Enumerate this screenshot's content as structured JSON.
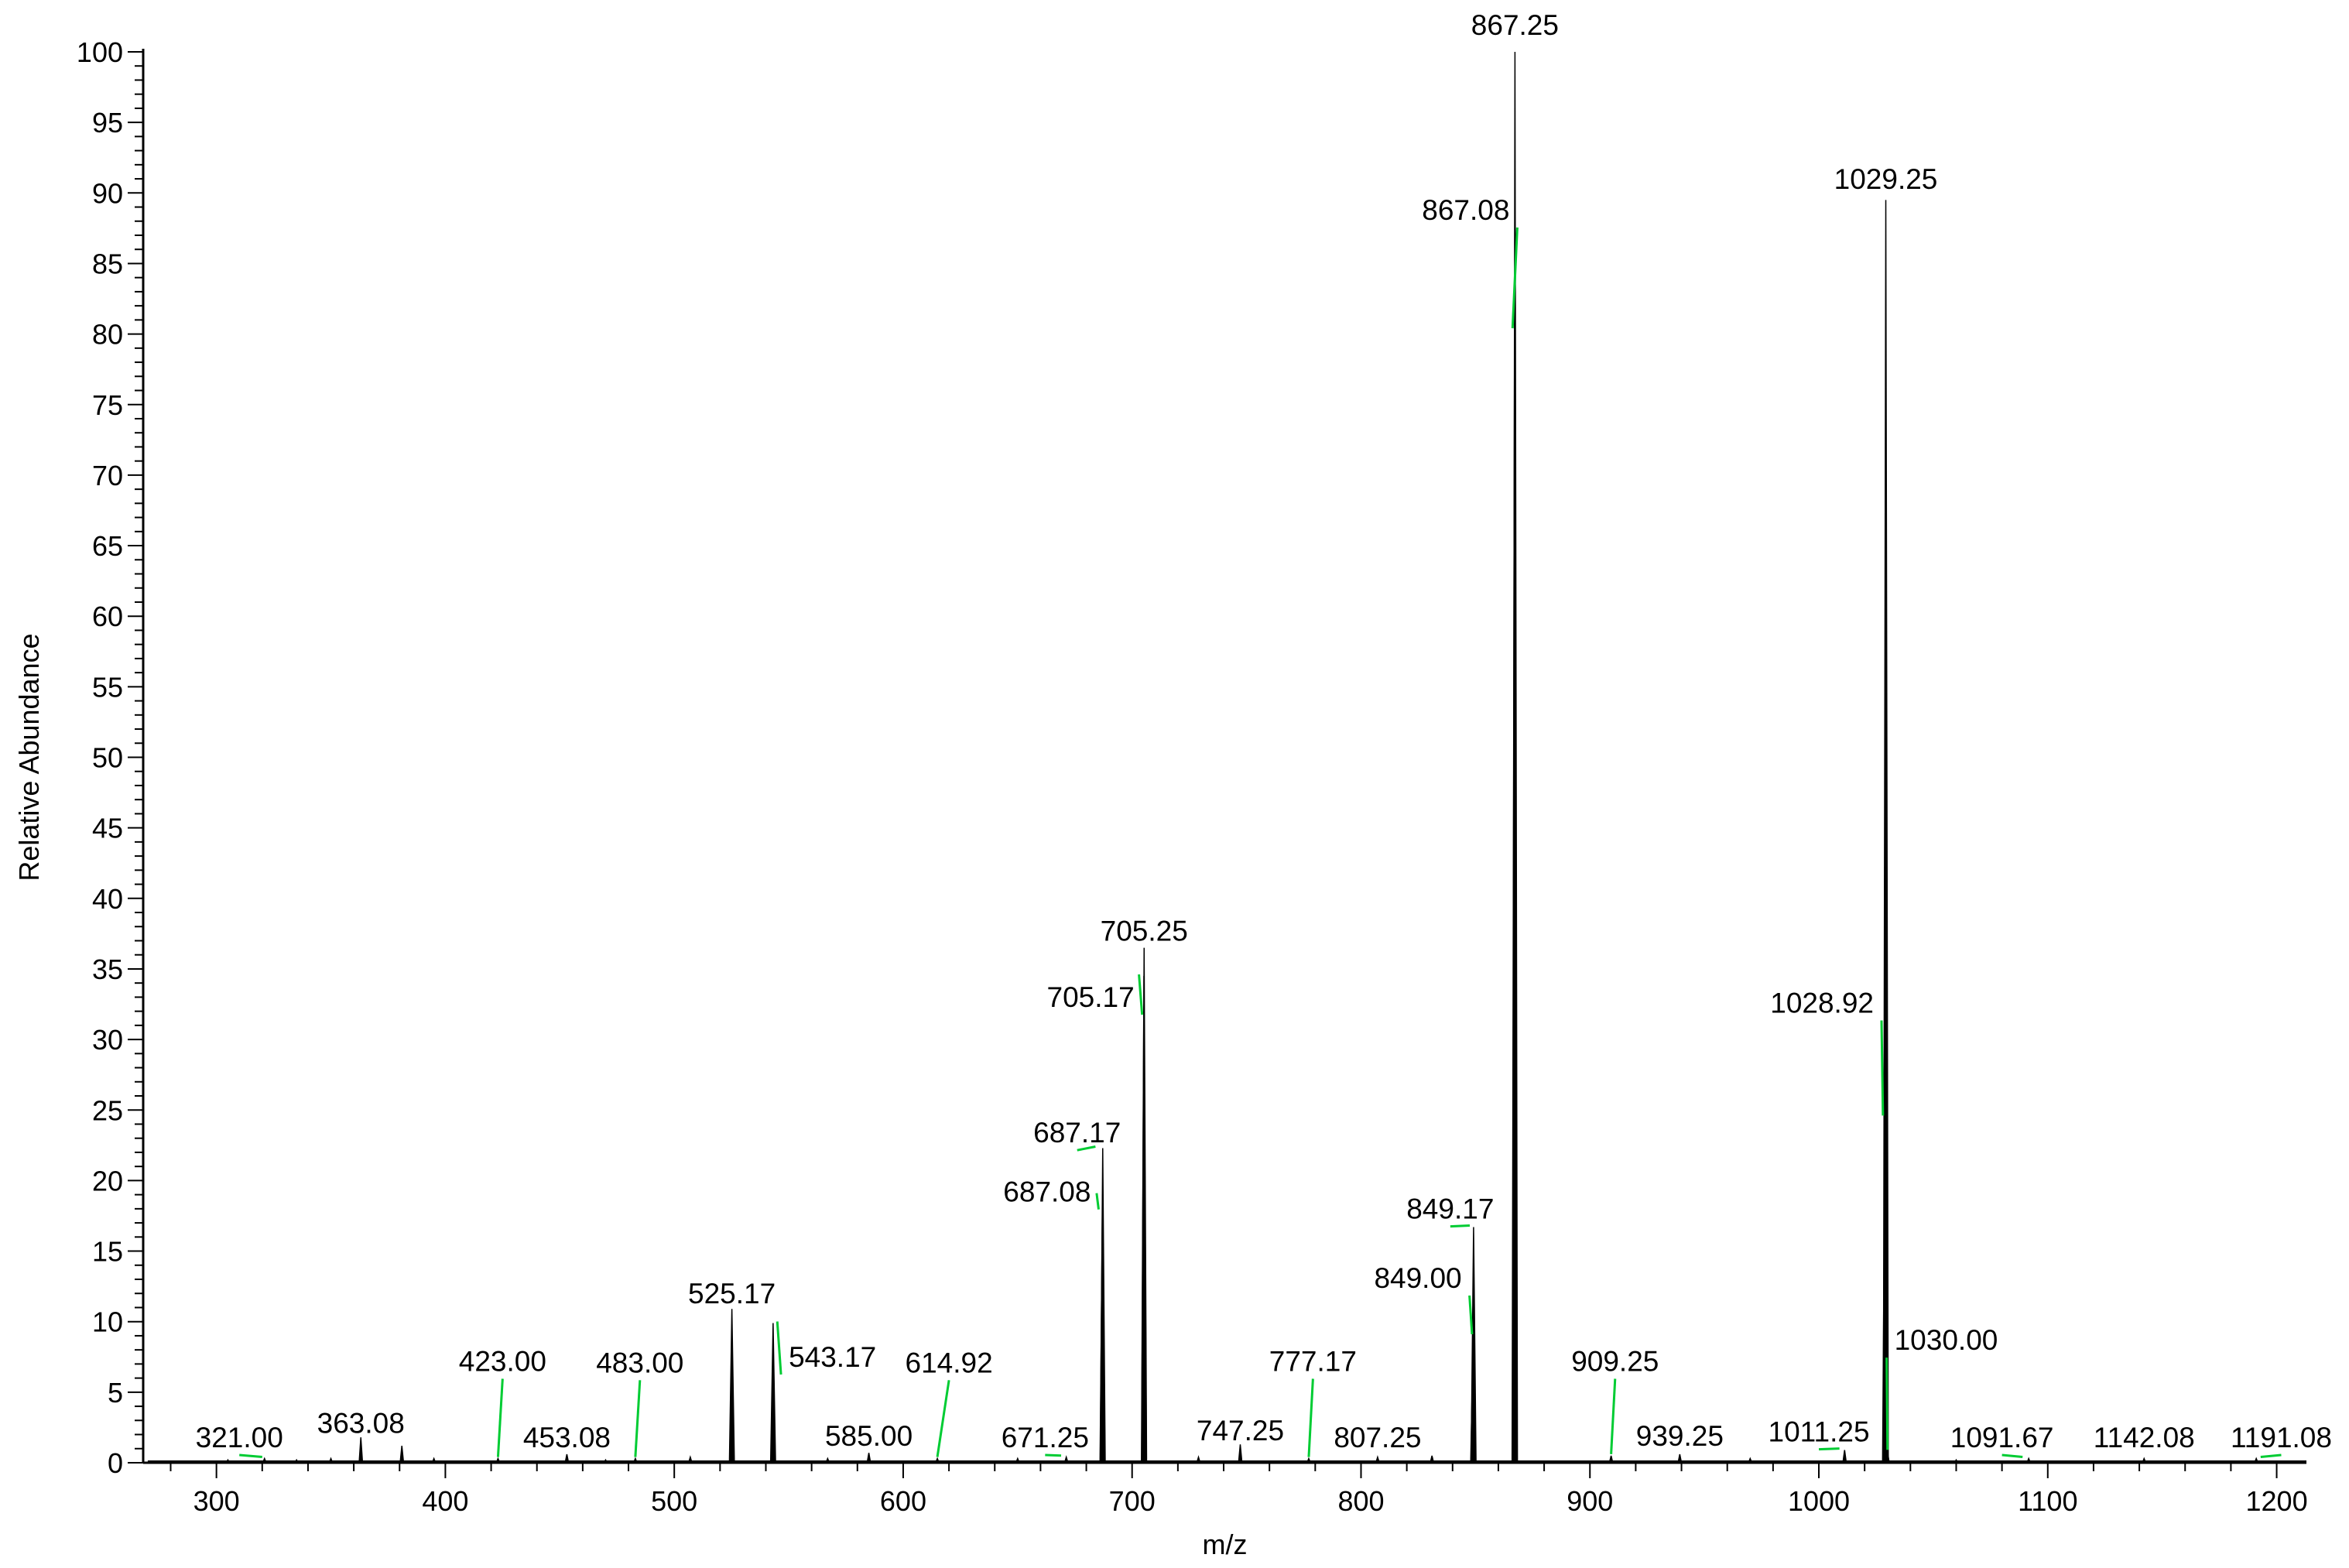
{
  "chart_data": {
    "type": "line",
    "subtype": "mass-spectrum-stick",
    "title": "",
    "xlabel": "m/z",
    "ylabel": "Relative Abundance",
    "xlim": [
      268,
      1213
    ],
    "ylim": [
      0,
      100
    ],
    "x_ticks": [
      300,
      400,
      500,
      600,
      700,
      800,
      900,
      1000,
      1100,
      1200
    ],
    "y_ticks": [
      0,
      5,
      10,
      15,
      20,
      25,
      30,
      35,
      40,
      45,
      50,
      55,
      60,
      65,
      70,
      75,
      80,
      85,
      90,
      95,
      100
    ],
    "grid": false,
    "legend": "none",
    "colors": {
      "trace": "#000000",
      "leader": "#00cc33",
      "axis": "#000000"
    },
    "peaks": [
      {
        "mz": 305.0,
        "intensity": 0.2
      },
      {
        "mz": 321.0,
        "intensity": 0.3
      },
      {
        "mz": 335.0,
        "intensity": 0.2
      },
      {
        "mz": 350.0,
        "intensity": 0.3
      },
      {
        "mz": 363.08,
        "intensity": 1.8
      },
      {
        "mz": 381.0,
        "intensity": 1.2
      },
      {
        "mz": 395.0,
        "intensity": 0.3
      },
      {
        "mz": 423.0,
        "intensity": 0.3
      },
      {
        "mz": 453.08,
        "intensity": 0.6
      },
      {
        "mz": 470.0,
        "intensity": 0.2
      },
      {
        "mz": 483.0,
        "intensity": 0.3
      },
      {
        "mz": 507.0,
        "intensity": 0.4
      },
      {
        "mz": 525.17,
        "intensity": 10.9
      },
      {
        "mz": 543.17,
        "intensity": 9.9
      },
      {
        "mz": 567.0,
        "intensity": 0.3
      },
      {
        "mz": 585.0,
        "intensity": 0.7
      },
      {
        "mz": 614.92,
        "intensity": 0.3
      },
      {
        "mz": 650.0,
        "intensity": 0.3
      },
      {
        "mz": 671.25,
        "intensity": 0.4
      },
      {
        "mz": 687.08,
        "intensity": 19.0
      },
      {
        "mz": 687.17,
        "intensity": 22.3
      },
      {
        "mz": 705.17,
        "intensity": 34.5
      },
      {
        "mz": 705.25,
        "intensity": 36.5
      },
      {
        "mz": 729.0,
        "intensity": 0.4
      },
      {
        "mz": 747.25,
        "intensity": 1.3
      },
      {
        "mz": 777.17,
        "intensity": 0.3
      },
      {
        "mz": 807.25,
        "intensity": 0.4
      },
      {
        "mz": 831.0,
        "intensity": 0.5
      },
      {
        "mz": 849.0,
        "intensity": 9.0
      },
      {
        "mz": 849.17,
        "intensity": 16.7
      },
      {
        "mz": 867.08,
        "intensity": 80.3
      },
      {
        "mz": 867.25,
        "intensity": 100.0
      },
      {
        "mz": 909.25,
        "intensity": 0.5
      },
      {
        "mz": 939.25,
        "intensity": 0.6
      },
      {
        "mz": 970.0,
        "intensity": 0.3
      },
      {
        "mz": 1011.25,
        "intensity": 0.9
      },
      {
        "mz": 1028.92,
        "intensity": 24.5
      },
      {
        "mz": 1029.25,
        "intensity": 89.5
      },
      {
        "mz": 1030.0,
        "intensity": 0.8
      },
      {
        "mz": 1060.0,
        "intensity": 0.2
      },
      {
        "mz": 1091.67,
        "intensity": 0.3
      },
      {
        "mz": 1142.08,
        "intensity": 0.3
      },
      {
        "mz": 1191.08,
        "intensity": 0.3
      }
    ],
    "annotations": [
      {
        "text": "867.25",
        "mz": 867.25,
        "intensity": 100.0,
        "label_mz": 867.25,
        "label_level": 101.2,
        "anchor": "middle"
      },
      {
        "text": "1029.25",
        "mz": 1029.25,
        "intensity": 89.5,
        "label_mz": 1029.25,
        "label_level": 90.3,
        "anchor": "middle"
      },
      {
        "text": "867.08",
        "mz": 866.2,
        "intensity": 80.3,
        "label_mz": 864.9,
        "label_level": 88.1,
        "anchor": "end"
      },
      {
        "text": "705.25",
        "mz": 705.25,
        "intensity": 36.5,
        "label_mz": 705.25,
        "label_level": 37.0,
        "anchor": "middle"
      },
      {
        "text": "705.17",
        "mz": 703.0,
        "intensity": 34.5,
        "label_mz": 701.0,
        "label_level": 32.3,
        "anchor": "end"
      },
      {
        "text": "1028.92",
        "mz": 1028.0,
        "intensity": 24.5,
        "label_mz": 1024.0,
        "label_level": 31.9,
        "anchor": "end"
      },
      {
        "text": "687.17",
        "mz": 684.0,
        "intensity": 22.3,
        "label_mz": 676.0,
        "label_level": 22.7,
        "anchor": "middle"
      },
      {
        "text": "687.08",
        "mz": 684.5,
        "intensity": 19.0,
        "label_mz": 682.0,
        "label_level": 18.5,
        "anchor": "end"
      },
      {
        "text": "849.17",
        "mz": 847.5,
        "intensity": 16.7,
        "label_mz": 839.0,
        "label_level": 17.3,
        "anchor": "middle"
      },
      {
        "text": "525.17",
        "mz": 525.17,
        "intensity": 10.9,
        "label_mz": 525.17,
        "label_level": 11.3,
        "anchor": "middle"
      },
      {
        "text": "543.17",
        "mz": 545.0,
        "intensity": 9.9,
        "label_mz": 550.0,
        "label_level": 6.8,
        "anchor": "start"
      },
      {
        "text": "849.00",
        "mz": 848.5,
        "intensity": 9.0,
        "label_mz": 844.0,
        "label_level": 12.4,
        "anchor": "end"
      },
      {
        "text": "1030.00",
        "mz": 1030.0,
        "intensity": 0.8,
        "label_mz": 1033.0,
        "label_level": 8.0,
        "anchor": "start"
      },
      {
        "text": "423.00",
        "mz": 423.0,
        "intensity": 0.3,
        "label_mz": 425.0,
        "label_level": 6.5,
        "anchor": "middle"
      },
      {
        "text": "483.00",
        "mz": 483.0,
        "intensity": 0.3,
        "label_mz": 485.0,
        "label_level": 6.4,
        "anchor": "middle"
      },
      {
        "text": "614.92",
        "mz": 614.92,
        "intensity": 0.3,
        "label_mz": 620.0,
        "label_level": 6.4,
        "anchor": "middle"
      },
      {
        "text": "777.17",
        "mz": 777.17,
        "intensity": 0.3,
        "label_mz": 779.0,
        "label_level": 6.5,
        "anchor": "middle"
      },
      {
        "text": "909.25",
        "mz": 909.25,
        "intensity": 0.5,
        "label_mz": 911.0,
        "label_level": 6.5,
        "anchor": "middle"
      },
      {
        "text": "363.08",
        "mz": 363.08,
        "intensity": 1.8,
        "label_mz": 363.08,
        "label_level": 2.1,
        "anchor": "middle"
      },
      {
        "text": "747.25",
        "mz": 747.25,
        "intensity": 1.3,
        "label_mz": 747.25,
        "label_level": 1.6,
        "anchor": "middle"
      },
      {
        "text": "321.00",
        "mz": 320.0,
        "intensity": 0.3,
        "label_mz": 310.0,
        "label_level": 1.1,
        "anchor": "middle"
      },
      {
        "text": "453.08",
        "mz": 453.08,
        "intensity": 0.6,
        "label_mz": 453.08,
        "label_level": 1.1,
        "anchor": "middle"
      },
      {
        "text": "585.00",
        "mz": 585.0,
        "intensity": 0.7,
        "label_mz": 585.0,
        "label_level": 1.2,
        "anchor": "middle"
      },
      {
        "text": "671.25",
        "mz": 669.0,
        "intensity": 0.4,
        "label_mz": 662.0,
        "label_level": 1.1,
        "anchor": "middle"
      },
      {
        "text": "807.25",
        "mz": 807.25,
        "intensity": 0.4,
        "label_mz": 807.25,
        "label_level": 1.1,
        "anchor": "middle"
      },
      {
        "text": "939.25",
        "mz": 939.25,
        "intensity": 0.6,
        "label_mz": 939.25,
        "label_level": 1.2,
        "anchor": "middle"
      },
      {
        "text": "1011.25",
        "mz": 1009.0,
        "intensity": 0.9,
        "label_mz": 1000.0,
        "label_level": 1.5,
        "anchor": "middle"
      },
      {
        "text": "1091.67",
        "mz": 1089.0,
        "intensity": 0.3,
        "label_mz": 1080.0,
        "label_level": 1.1,
        "anchor": "middle"
      },
      {
        "text": "1142.08",
        "mz": 1142.08,
        "intensity": 0.3,
        "label_mz": 1142.08,
        "label_level": 1.1,
        "anchor": "middle"
      },
      {
        "text": "1191.08",
        "mz": 1193.0,
        "intensity": 0.3,
        "label_mz": 1202.0,
        "label_level": 1.1,
        "anchor": "middle"
      }
    ]
  }
}
